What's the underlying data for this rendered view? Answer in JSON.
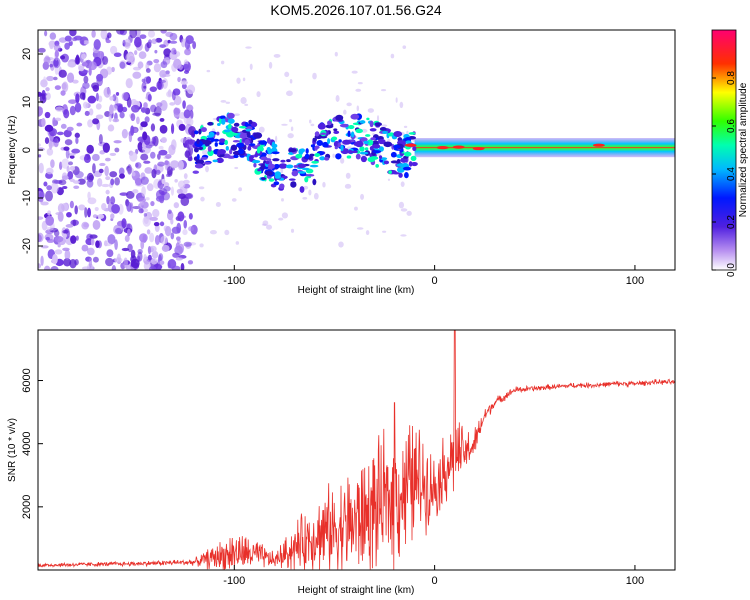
{
  "title": "KOM5.2026.107.01.56.G24",
  "chart_data": [
    {
      "type": "heatmap",
      "name": "spectrogram",
      "xlabel": "Height of straight line (km)",
      "ylabel": "Frequency (Hz)",
      "xlim": [
        -198,
        120
      ],
      "ylim": [
        -25,
        25
      ],
      "xticks": [
        "-100",
        "0",
        "100"
      ],
      "yticks": [
        "20",
        "10",
        "0",
        "-10",
        "-20"
      ],
      "colorbar": {
        "label": "Normalized spectral amplitude",
        "range": [
          0,
          1
        ],
        "ticks": [
          "0.0",
          "0.2",
          "0.4",
          "0.6",
          "0.8"
        ]
      },
      "features": [
        {
          "region": "noise",
          "x_range": [
            -198,
            -120
          ],
          "freq_range": [
            -25,
            25
          ],
          "amplitude": "low (scattered)"
        },
        {
          "region": "band",
          "x_range": [
            -120,
            120
          ],
          "freq_center": 0,
          "amplitude": "medium to high"
        }
      ]
    },
    {
      "type": "line",
      "name": "snr",
      "xlabel": "Height of straight line (km)",
      "ylabel": "SNR (10 * v/v)",
      "xlim": [
        -198,
        120
      ],
      "ylim": [
        0,
        7600
      ],
      "xticks": [
        "-100",
        "0",
        "100"
      ],
      "yticks": [
        "2000",
        "4000",
        "6000"
      ],
      "color": "#e8302a",
      "envelope": {
        "x": [
          -198,
          -150,
          -120,
          -110,
          -100,
          -90,
          -80,
          -70,
          -60,
          -50,
          -40,
          -30,
          -20,
          -10,
          -5,
          0,
          5,
          10,
          15,
          20,
          25,
          30,
          40,
          50,
          60,
          70,
          80,
          90,
          100,
          110,
          120
        ],
        "y": [
          150,
          200,
          250,
          400,
          550,
          500,
          300,
          700,
          1100,
          1300,
          1500,
          1900,
          2300,
          2800,
          2800,
          2600,
          3200,
          3600,
          3700,
          4000,
          4900,
          5300,
          5700,
          5750,
          5800,
          5850,
          5850,
          5900,
          5900,
          5950,
          5950
        ],
        "amp": [
          80,
          90,
          120,
          500,
          800,
          600,
          300,
          900,
          1400,
          1800,
          2200,
          2400,
          2600,
          2500,
          1800,
          1200,
          1400,
          1600,
          900,
          600,
          300,
          180,
          130,
          110,
          100,
          100,
          100,
          100,
          100,
          100,
          100
        ]
      },
      "spikes": [
        {
          "x": 10,
          "y": 7600
        },
        {
          "x": -20,
          "y": 5300
        }
      ]
    }
  ]
}
